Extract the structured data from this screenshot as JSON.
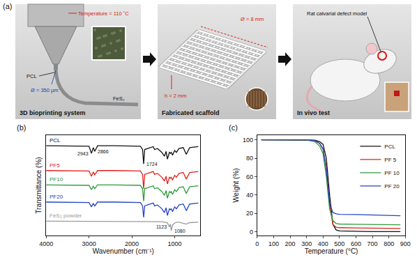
{
  "panel_a": {
    "title": "(a)",
    "panels": [
      {
        "caption": "3D bioprinting system",
        "labels": [
          "Temperature = 110 ˚C",
          "PCL",
          "Ø = 350 µm",
          "FeS₂"
        ]
      },
      {
        "caption": "Fabricated scaffold",
        "labels": [
          "Ø = 8 mm",
          "h = 2 mm"
        ]
      },
      {
        "caption": "In vivo test",
        "labels": [
          "Rat calvarial defect model"
        ]
      }
    ]
  },
  "chart_data": [
    {
      "type": "line",
      "title": "(b)",
      "x_label": "Wavenumber (cm⁻¹)",
      "y_label": "Transmittance (%)",
      "x": [
        4000,
        3600,
        3200,
        3000,
        2943,
        2900,
        2866,
        2800,
        2400,
        2000,
        1800,
        1750,
        1724,
        1700,
        1500,
        1470,
        1400,
        1300,
        1240,
        1200,
        1170,
        1123,
        1100,
        1080,
        1050,
        1000,
        960,
        900,
        800,
        730,
        650,
        450
      ],
      "series": [
        {
          "name": "PCL",
          "color": "#111111",
          "values": [
            9.4,
            9.4,
            9.4,
            9.35,
            8.6,
            9.2,
            8.8,
            9.4,
            9.4,
            9.4,
            9.35,
            9.0,
            7.5,
            9.0,
            9.3,
            9.0,
            9.1,
            8.7,
            8.3,
            8.8,
            8.0,
            8.7,
            8.6,
            8.7,
            8.4,
            8.9,
            8.7,
            9.1,
            9.2,
            8.5,
            9.2,
            9.3
          ]
        },
        {
          "name": "PF5",
          "color": "#e0201b",
          "values": [
            6.8,
            6.8,
            6.8,
            6.75,
            6.2,
            6.65,
            6.35,
            6.8,
            6.8,
            6.8,
            6.75,
            6.4,
            4.9,
            6.4,
            6.7,
            6.4,
            6.5,
            6.1,
            5.7,
            6.2,
            5.4,
            6.1,
            6.0,
            6.1,
            5.8,
            6.3,
            6.1,
            6.5,
            6.6,
            5.9,
            6.6,
            6.7
          ]
        },
        {
          "name": "PF10",
          "color": "#2e9a3a",
          "values": [
            5.3,
            5.3,
            5.3,
            5.25,
            4.8,
            5.15,
            4.9,
            5.3,
            5.3,
            5.3,
            5.25,
            4.9,
            3.6,
            4.9,
            5.2,
            4.9,
            5.0,
            4.6,
            4.2,
            4.7,
            3.9,
            4.6,
            4.5,
            4.6,
            4.3,
            4.8,
            4.6,
            5.0,
            5.1,
            4.4,
            5.1,
            5.2
          ]
        },
        {
          "name": "PF20",
          "color": "#2443c4",
          "values": [
            3.5,
            3.5,
            3.5,
            3.45,
            3.0,
            3.35,
            3.1,
            3.5,
            3.5,
            3.5,
            3.45,
            3.1,
            1.9,
            3.1,
            3.4,
            3.1,
            3.2,
            2.8,
            2.4,
            2.9,
            2.1,
            2.8,
            2.7,
            2.8,
            2.5,
            3.0,
            2.8,
            3.2,
            3.3,
            2.6,
            3.3,
            3.4
          ]
        },
        {
          "name": "FeS₂ powder",
          "color": "#9a9a9a",
          "values": [
            1.5,
            1.5,
            1.5,
            1.5,
            1.5,
            1.5,
            1.5,
            1.5,
            1.5,
            1.45,
            1.5,
            1.5,
            1.5,
            1.5,
            1.5,
            1.5,
            1.45,
            1.45,
            1.4,
            1.4,
            1.35,
            0.9,
            1.2,
            0.5,
            1.1,
            1.3,
            1.4,
            1.4,
            1.3,
            1.2,
            1.35,
            1.4
          ]
        }
      ],
      "annotations": [
        {
          "text": "2943",
          "x": 2943,
          "series": "PCL"
        },
        {
          "text": "2866",
          "x": 2866,
          "series": "PCL"
        },
        {
          "text": "1724",
          "x": 1724,
          "series": "PCL"
        },
        {
          "text": "1123",
          "x": 1123,
          "series": "FeS₂ powder"
        },
        {
          "text": "1080",
          "x": 1080,
          "series": "FeS₂ powder"
        }
      ],
      "xlim": [
        4000,
        400
      ],
      "xticks": [
        4000,
        3000,
        2000,
        1000
      ],
      "ylim": [
        0,
        10.5
      ],
      "tick_labels": "x",
      "grid": false
    },
    {
      "type": "line",
      "title": "(c)",
      "x_label": "Temperature (°C)",
      "y_label": "Weight (%)",
      "x": [
        25,
        100,
        200,
        300,
        350,
        380,
        400,
        420,
        440,
        460,
        480,
        500,
        600,
        700,
        800,
        870
      ],
      "series": [
        {
          "name": "PCL",
          "color": "#111111",
          "values": [
            100,
            100,
            100,
            100,
            99.5,
            98,
            95,
            80,
            40,
            8,
            2,
            1,
            0.5,
            0.3,
            0.2,
            0.2
          ]
        },
        {
          "name": "PF 5",
          "color": "#e0201b",
          "values": [
            100,
            100,
            100,
            100,
            99,
            96,
            90,
            70,
            30,
            8,
            5,
            4.5,
            4.2,
            4,
            3.8,
            3.7
          ]
        },
        {
          "name": "PF 10",
          "color": "#2e9a3a",
          "values": [
            100,
            100,
            100,
            99.8,
            98,
            93,
            85,
            60,
            25,
            12,
            9,
            8.5,
            8.2,
            8,
            7.8,
            7.7
          ]
        },
        {
          "name": "PF 20",
          "color": "#2443c4",
          "values": [
            100,
            100,
            100,
            100,
            99,
            96,
            90,
            68,
            30,
            21,
            19.5,
            19,
            18.8,
            18.5,
            18,
            17.5
          ]
        }
      ],
      "xlim": [
        0,
        900
      ],
      "xticks": [
        0,
        100,
        200,
        300,
        400,
        500,
        600,
        700,
        800,
        900
      ],
      "ylim": [
        -4,
        105
      ],
      "yticks": [
        0,
        20,
        40,
        60,
        80,
        100
      ],
      "legend": "upper right",
      "grid": false
    }
  ]
}
